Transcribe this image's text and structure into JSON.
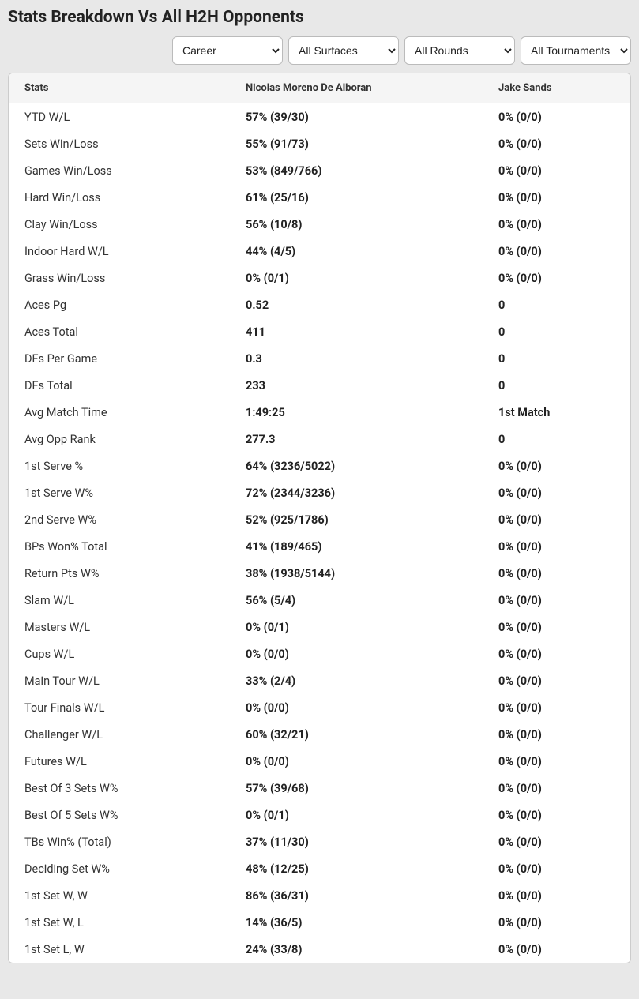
{
  "title": "Stats Breakdown Vs All H2H Opponents",
  "filters": {
    "career": {
      "selected": "Career"
    },
    "surface": {
      "selected": "All Surfaces"
    },
    "rounds": {
      "selected": "All Rounds"
    },
    "tourn": {
      "selected": "All Tournaments"
    }
  },
  "columns": {
    "stats": "Stats",
    "p1": "Nicolas Moreno De Alboran",
    "p2": "Jake Sands"
  },
  "rows": [
    {
      "stat": "YTD W/L",
      "p1": "57% (39/30)",
      "p2": "0% (0/0)"
    },
    {
      "stat": "Sets Win/Loss",
      "p1": "55% (91/73)",
      "p2": "0% (0/0)"
    },
    {
      "stat": "Games Win/Loss",
      "p1": "53% (849/766)",
      "p2": "0% (0/0)"
    },
    {
      "stat": "Hard Win/Loss",
      "p1": "61% (25/16)",
      "p2": "0% (0/0)"
    },
    {
      "stat": "Clay Win/Loss",
      "p1": "56% (10/8)",
      "p2": "0% (0/0)"
    },
    {
      "stat": "Indoor Hard W/L",
      "p1": "44% (4/5)",
      "p2": "0% (0/0)"
    },
    {
      "stat": "Grass Win/Loss",
      "p1": "0% (0/1)",
      "p2": "0% (0/0)"
    },
    {
      "stat": "Aces Pg",
      "p1": "0.52",
      "p2": "0"
    },
    {
      "stat": "Aces Total",
      "p1": "411",
      "p2": "0"
    },
    {
      "stat": "DFs Per Game",
      "p1": "0.3",
      "p2": "0"
    },
    {
      "stat": "DFs Total",
      "p1": "233",
      "p2": "0"
    },
    {
      "stat": "Avg Match Time",
      "p1": "1:49:25",
      "p2": "1st Match"
    },
    {
      "stat": "Avg Opp Rank",
      "p1": "277.3",
      "p2": "0"
    },
    {
      "stat": "1st Serve %",
      "p1": "64% (3236/5022)",
      "p2": "0% (0/0)"
    },
    {
      "stat": "1st Serve W%",
      "p1": "72% (2344/3236)",
      "p2": "0% (0/0)"
    },
    {
      "stat": "2nd Serve W%",
      "p1": "52% (925/1786)",
      "p2": "0% (0/0)"
    },
    {
      "stat": "BPs Won% Total",
      "p1": "41% (189/465)",
      "p2": "0% (0/0)"
    },
    {
      "stat": "Return Pts W%",
      "p1": "38% (1938/5144)",
      "p2": "0% (0/0)"
    },
    {
      "stat": "Slam W/L",
      "p1": "56% (5/4)",
      "p2": "0% (0/0)"
    },
    {
      "stat": "Masters W/L",
      "p1": "0% (0/1)",
      "p2": "0% (0/0)"
    },
    {
      "stat": "Cups W/L",
      "p1": "0% (0/0)",
      "p2": "0% (0/0)"
    },
    {
      "stat": "Main Tour W/L",
      "p1": "33% (2/4)",
      "p2": "0% (0/0)"
    },
    {
      "stat": "Tour Finals W/L",
      "p1": "0% (0/0)",
      "p2": "0% (0/0)"
    },
    {
      "stat": "Challenger W/L",
      "p1": "60% (32/21)",
      "p2": "0% (0/0)"
    },
    {
      "stat": "Futures W/L",
      "p1": "0% (0/0)",
      "p2": "0% (0/0)"
    },
    {
      "stat": "Best Of 3 Sets W%",
      "p1": "57% (39/68)",
      "p2": "0% (0/0)"
    },
    {
      "stat": "Best Of 5 Sets W%",
      "p1": "0% (0/1)",
      "p2": "0% (0/0)"
    },
    {
      "stat": "TBs Win% (Total)",
      "p1": "37% (11/30)",
      "p2": "0% (0/0)"
    },
    {
      "stat": "Deciding Set W%",
      "p1": "48% (12/25)",
      "p2": "0% (0/0)"
    },
    {
      "stat": "1st Set W, W",
      "p1": "86% (36/31)",
      "p2": "0% (0/0)"
    },
    {
      "stat": "1st Set W, L",
      "p1": "14% (36/5)",
      "p2": "0% (0/0)"
    },
    {
      "stat": "1st Set L, W",
      "p1": "24% (33/8)",
      "p2": "0% (0/0)"
    }
  ]
}
